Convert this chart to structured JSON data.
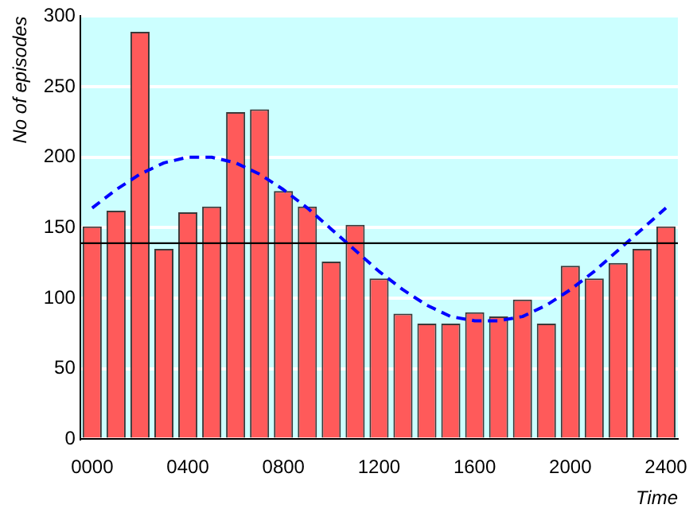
{
  "chart_data": {
    "type": "bar",
    "xlabel": "Time",
    "ylabel": "No of episodes",
    "categories": [
      "0000",
      null,
      null,
      null,
      "0400",
      null,
      null,
      null,
      "0800",
      null,
      null,
      null,
      "1200",
      null,
      null,
      null,
      "1600",
      null,
      null,
      null,
      "2000",
      null,
      null,
      null,
      "2400"
    ],
    "series": [
      {
        "color": "#ff5a5a",
        "values": [
          151,
          162,
          289,
          135,
          161,
          165,
          232,
          234,
          176,
          165,
          126,
          152,
          114,
          89,
          82,
          82,
          90,
          87,
          99,
          82,
          123,
          114,
          125,
          135,
          151
        ]
      },
      {
        "type": "line",
        "color": "#0000ff",
        "line_style": "dashed",
        "marker": "none",
        "values": [
          164,
          177,
          188,
          196,
          200,
          200,
          196,
          188,
          177,
          164,
          149,
          134,
          119,
          106,
          95,
          87,
          84,
          84,
          87,
          95,
          106,
          119,
          134,
          149,
          164
        ]
      }
    ],
    "ylim": [
      0,
      300
    ],
    "yticks": [
      0,
      50,
      100,
      150,
      200,
      250,
      300
    ],
    "grid": "y",
    "legend": false,
    "ref_lines": [
      {
        "axis": "y",
        "value": 139,
        "color": "#000000"
      }
    ]
  }
}
